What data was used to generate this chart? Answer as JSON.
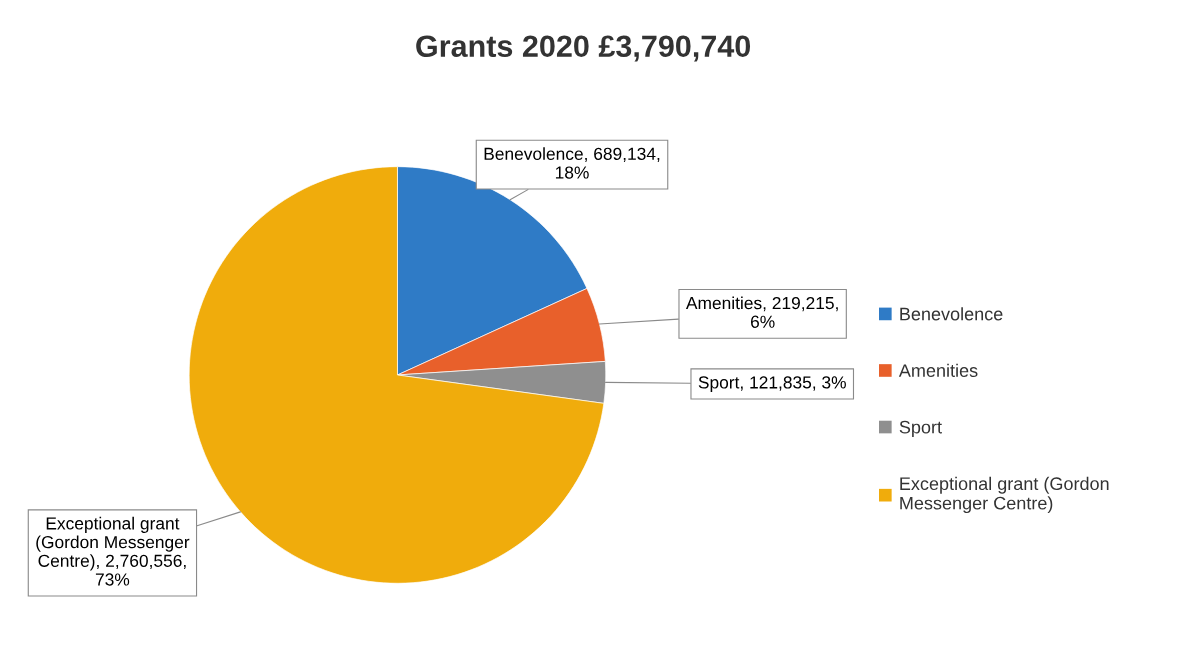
{
  "chart_data": {
    "type": "pie",
    "title": "Grants 2020 £3,790,740",
    "categories": [
      "Benevolence",
      "Amenities",
      "Sport",
      "Exceptional grant (Gordon Messenger Centre)"
    ],
    "values": [
      689134,
      219215,
      121835,
      2760556
    ],
    "colors": [
      "#2f7bc6",
      "#e8602b",
      "#8f8f8f",
      "#f0ac0c"
    ],
    "value_labels": [
      "Benevolence, 689,134,\n18%",
      "Amenities, 219,215,\n6%",
      "Sport, 121,835, 3%",
      "Exceptional grant\n(Gordon Messenger\nCentre), 2,760,556,\n73%"
    ],
    "legend": "right"
  }
}
